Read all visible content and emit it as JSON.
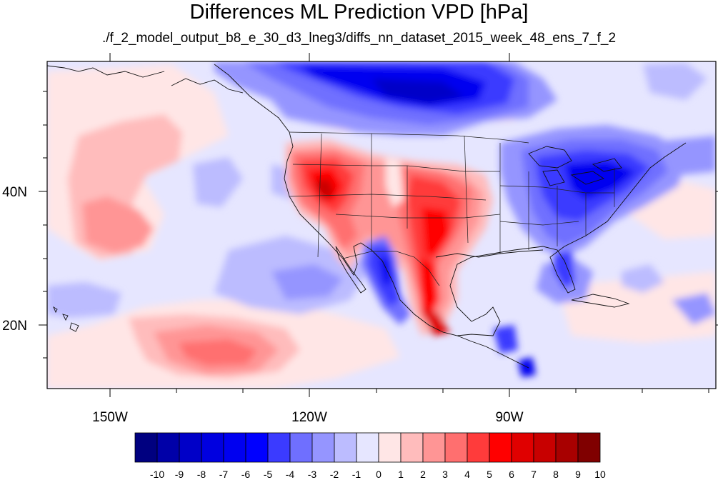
{
  "title": "Differences ML Prediction VPD [hPa]",
  "subtitle": "./f_2_model_output_b8_e_30_d3_lneg3/diffs_nn_dataset_2015_week_48_ens_7_f_2",
  "lon_labels": [
    "150W",
    "120W",
    "90W"
  ],
  "lat_labels": [
    "40N",
    "20N"
  ],
  "colorbar": {
    "labels": [
      "-10",
      "-9",
      "-8",
      "-7",
      "-6",
      "-5",
      "-4",
      "-3",
      "-2",
      "-1",
      "0",
      "1",
      "2",
      "3",
      "4",
      "5",
      "6",
      "7",
      "8",
      "9",
      "10"
    ],
    "colors": [
      "#000080",
      "#0000a8",
      "#0000c8",
      "#0000e0",
      "#0000f0",
      "#0000ff",
      "#3b3bff",
      "#6f6fff",
      "#9595ff",
      "#bcbcff",
      "#e6e6ff",
      "#ffe6e6",
      "#ffbcbc",
      "#ff9595",
      "#ff6f6f",
      "#ff3b3b",
      "#ff0000",
      "#e00000",
      "#c80000",
      "#a80000",
      "#800000"
    ]
  }
}
